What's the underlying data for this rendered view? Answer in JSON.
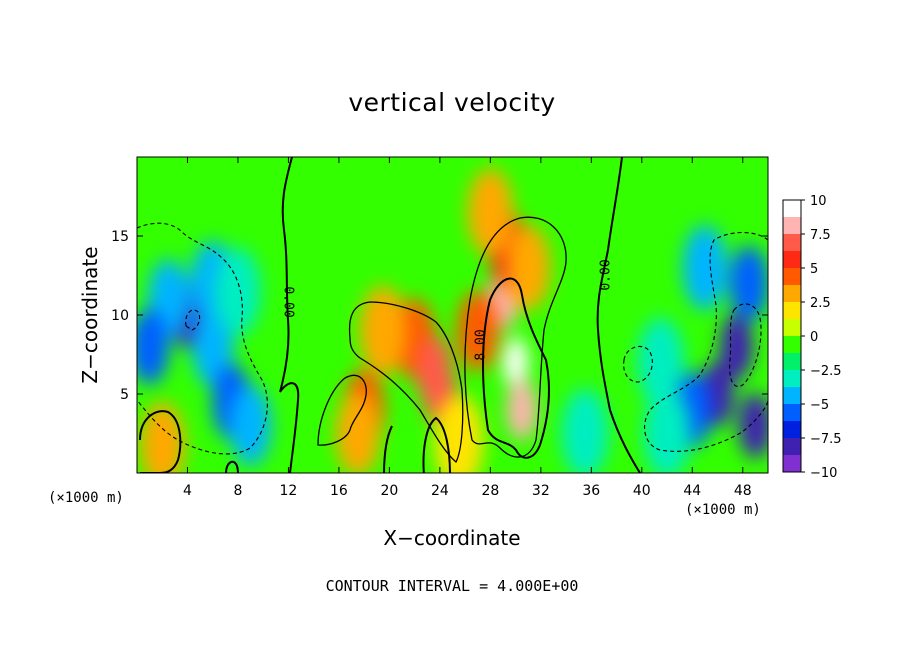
{
  "chart_data": {
    "type": "heatmap",
    "title": "vertical velocity",
    "xlabel": "X−coordinate",
    "ylabel": "Z−coordinate",
    "x_unit": "(×1000 m)",
    "x_unit_right": "(×1000 m)",
    "xlim": [
      0,
      50
    ],
    "ylim": [
      0,
      20
    ],
    "x_ticks": [
      4,
      8,
      12,
      16,
      20,
      24,
      28,
      32,
      36,
      40,
      44,
      48
    ],
    "y_ticks": [
      5,
      10,
      15
    ],
    "colorbar": {
      "ticks": [
        "10",
        "7.5",
        "5",
        "2.5",
        "0",
        "−2.5",
        "−5",
        "−7.5",
        "−10"
      ],
      "min": -10,
      "max": 10,
      "colors": [
        "#ffffff",
        "#ffb3b3",
        "#ff5a4a",
        "#ff2a14",
        "#ff5a00",
        "#ffa800",
        "#ffe400",
        "#c8ff00",
        "#33ff00",
        "#00f06a",
        "#00eec0",
        "#00b4ff",
        "#0060ff",
        "#0020e0",
        "#4020b0",
        "#8030d0"
      ]
    },
    "contour_labels": [
      "0.00",
      "8.00",
      "0.00"
    ],
    "contour_interval": "CONTOUR INTERVAL = 4.000E+00",
    "features": [
      {
        "x": 2,
        "z": 1.8,
        "w": 7
      },
      {
        "x": 2,
        "z": 1.8,
        "w": 4
      },
      {
        "x": 4,
        "z": 10,
        "w": -8
      },
      {
        "x": 2.5,
        "z": 11,
        "w": -5
      },
      {
        "x": 1,
        "z": 8,
        "w": -6
      },
      {
        "x": 6,
        "z": 8,
        "w": -5
      },
      {
        "x": 7.5,
        "z": 4.5,
        "w": -6
      },
      {
        "x": 9,
        "z": 3,
        "w": -5
      },
      {
        "x": 6,
        "z": 12,
        "w": -4
      },
      {
        "x": 8,
        "z": 11.5,
        "w": -3.5
      },
      {
        "x": 22,
        "z": 8.5,
        "w": 5
      },
      {
        "x": 23.5,
        "z": 6.5,
        "w": 7
      },
      {
        "x": 24,
        "z": 5,
        "w": 8
      },
      {
        "x": 19.5,
        "z": 9,
        "w": 3
      },
      {
        "x": 18,
        "z": 4,
        "w": 5
      },
      {
        "x": 17.5,
        "z": 2.5,
        "w": 4
      },
      {
        "x": 29,
        "z": 11,
        "w": 9
      },
      {
        "x": 30,
        "z": 7,
        "w": 11
      },
      {
        "x": 30.5,
        "z": 4,
        "w": 9
      },
      {
        "x": 29.5,
        "z": 14,
        "w": 6
      },
      {
        "x": 28,
        "z": 16.5,
        "w": 3.5
      },
      {
        "x": 27,
        "z": 9,
        "w": 5
      },
      {
        "x": 31,
        "z": 13,
        "w": 4
      },
      {
        "x": 25.5,
        "z": 2,
        "w": 2
      },
      {
        "x": 35.5,
        "z": 2.5,
        "w": -3
      },
      {
        "x": 47.5,
        "z": 8,
        "w": -8
      },
      {
        "x": 46,
        "z": 5,
        "w": -8
      },
      {
        "x": 44,
        "z": 4,
        "w": -6
      },
      {
        "x": 48.5,
        "z": 12,
        "w": -6
      },
      {
        "x": 45,
        "z": 13,
        "w": -4
      },
      {
        "x": 41.5,
        "z": 7,
        "w": -3
      },
      {
        "x": 49,
        "z": 3,
        "w": -8
      },
      {
        "x": 42,
        "z": 2.5,
        "w": -3
      }
    ]
  }
}
